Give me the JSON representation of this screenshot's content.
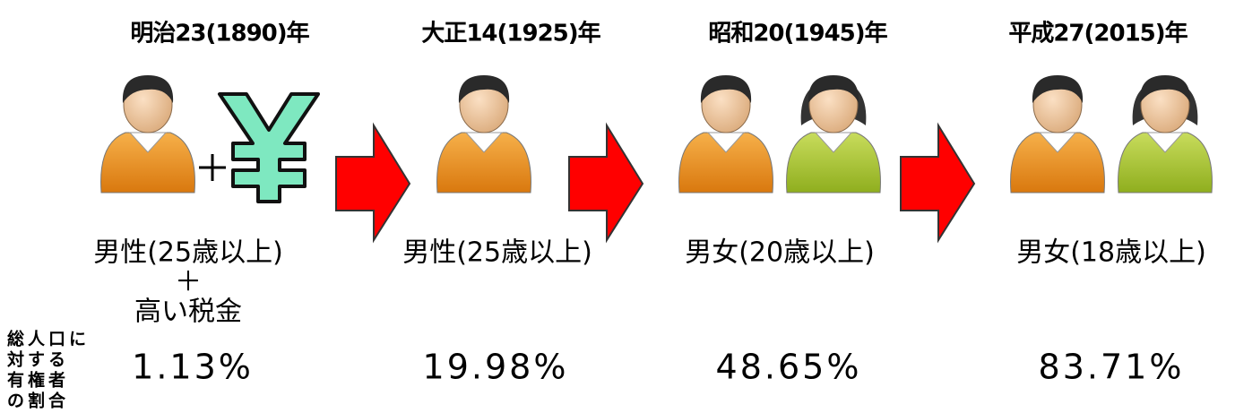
{
  "stages": [
    {
      "year": "明治23(1890)年",
      "eligibility": [
        "男性(25歳以上)",
        "＋",
        "高い税金"
      ],
      "ratio": "1.13%"
    },
    {
      "year": "大正14(1925)年",
      "eligibility": [
        "男性(25歳以上)"
      ],
      "ratio": "19.98%"
    },
    {
      "year": "昭和20(1945)年",
      "eligibility": [
        "男女(20歳以上)"
      ],
      "ratio": "48.65%"
    },
    {
      "year": "平成27(2015)年",
      "eligibility": [
        "男女(18歳以上)"
      ],
      "ratio": "83.71%"
    }
  ],
  "side_label": [
    "総人口に",
    "対する",
    "有権者",
    "の割合"
  ]
}
